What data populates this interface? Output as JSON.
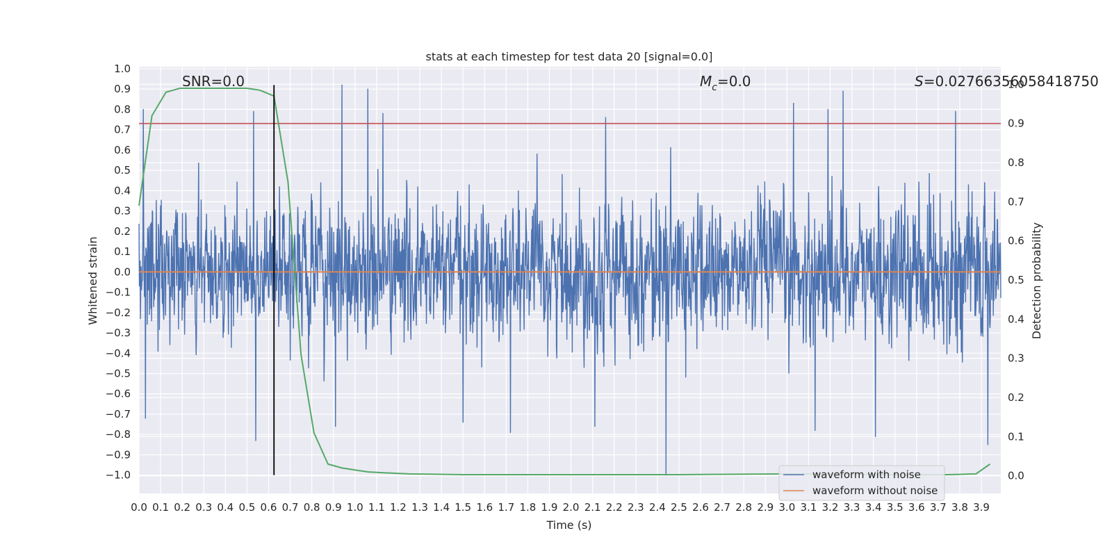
{
  "chart_data": {
    "type": "line",
    "title": "stats at each timestep for test data 20 [signal=0.0]",
    "xlabel": "Time (s)",
    "ylabel": "Whitened strain",
    "y2label": "Detection probability",
    "xlim": [
      0.0,
      3.99
    ],
    "ylim": [
      -1.09,
      1.01
    ],
    "y2lim": [
      -0.045,
      1.045
    ],
    "x_ticks": [
      "0.0",
      "0.1",
      "0.2",
      "0.3",
      "0.4",
      "0.5",
      "0.6",
      "0.7",
      "0.8",
      "0.9",
      "1.0",
      "1.1",
      "1.2",
      "1.3",
      "1.4",
      "1.5",
      "1.6",
      "1.7",
      "1.8",
      "1.9",
      "2.0",
      "2.1",
      "2.2",
      "2.3",
      "2.4",
      "2.5",
      "2.6",
      "2.7",
      "2.8",
      "2.9",
      "3.0",
      "3.1",
      "3.2",
      "3.3",
      "3.4",
      "3.5",
      "3.6",
      "3.7",
      "3.8",
      "3.9"
    ],
    "y_ticks": [
      "1.0",
      "0.9",
      "0.8",
      "0.7",
      "0.6",
      "0.5",
      "0.4",
      "0.3",
      "0.2",
      "0.1",
      "0.0",
      "−0.1",
      "−0.2",
      "−0.3",
      "−0.4",
      "−0.5",
      "−0.6",
      "−0.7",
      "−0.8",
      "−0.9",
      "−1.0"
    ],
    "y2_ticks": [
      "1.0",
      "0.9",
      "0.8",
      "0.7",
      "0.6",
      "0.5",
      "0.4",
      "0.3",
      "0.2",
      "0.1",
      "0.0"
    ],
    "grid": true,
    "legend_position": "lower-right",
    "annotations": {
      "snr": "SNR=0.0",
      "mc_symbol": "M",
      "mc_sub": "c",
      "mc_value": "=0.0",
      "s_symbol": "S",
      "s_value": "=0.02766356058418750"
    },
    "series": [
      {
        "name": "waveform with noise",
        "color": "#4c72b0",
        "noise_amplitude": 0.3,
        "time_range": [
          0.0,
          3.99
        ],
        "peaks": [
          {
            "x": 0.02,
            "y": 0.8
          },
          {
            "x": 0.03,
            "y": -0.72
          },
          {
            "x": 0.53,
            "y": 0.79
          },
          {
            "x": 0.54,
            "y": -0.83
          },
          {
            "x": 0.94,
            "y": 0.92
          },
          {
            "x": 1.06,
            "y": 0.9
          },
          {
            "x": 1.13,
            "y": 0.78
          },
          {
            "x": 3.03,
            "y": 0.83
          },
          {
            "x": 3.26,
            "y": 0.89
          },
          {
            "x": 3.19,
            "y": 0.8
          },
          {
            "x": 3.78,
            "y": 0.79
          },
          {
            "x": 2.44,
            "y": -1.0
          },
          {
            "x": 3.13,
            "y": -0.78
          },
          {
            "x": 3.41,
            "y": -0.81
          },
          {
            "x": 3.93,
            "y": -0.85
          },
          {
            "x": 0.91,
            "y": -0.76
          },
          {
            "x": 1.5,
            "y": -0.74
          },
          {
            "x": 1.72,
            "y": -0.79
          },
          {
            "x": 2.11,
            "y": -0.76
          },
          {
            "x": 2.16,
            "y": 0.76
          }
        ]
      },
      {
        "name": "waveform without noise",
        "color": "#dd8452",
        "x": [
          0.0,
          3.99
        ],
        "y": [
          0.0,
          0.0
        ]
      },
      {
        "name": "detection probability",
        "color": "#55a868",
        "axis": "right",
        "x": [
          0.0,
          0.06,
          0.125,
          0.19,
          0.25,
          0.31,
          0.375,
          0.44,
          0.5,
          0.56,
          0.625,
          0.69,
          0.75,
          0.81,
          0.875,
          0.94,
          1.0,
          1.06,
          1.125,
          1.25,
          1.5,
          2.0,
          2.5,
          3.0,
          3.5,
          3.75,
          3.875,
          3.94
        ],
        "y": [
          0.69,
          0.92,
          0.98,
          0.99,
          0.99,
          0.99,
          0.99,
          0.99,
          0.99,
          0.985,
          0.97,
          0.75,
          0.31,
          0.11,
          0.03,
          0.02,
          0.015,
          0.01,
          0.008,
          0.005,
          0.003,
          0.003,
          0.003,
          0.005,
          0.003,
          0.003,
          0.005,
          0.03
        ]
      }
    ],
    "threshold": {
      "y2": 0.9,
      "color": "#c44e52"
    },
    "vertical_marker": {
      "x": 0.625,
      "y": [
        -1.0,
        0.92
      ],
      "color": "#000000"
    }
  }
}
